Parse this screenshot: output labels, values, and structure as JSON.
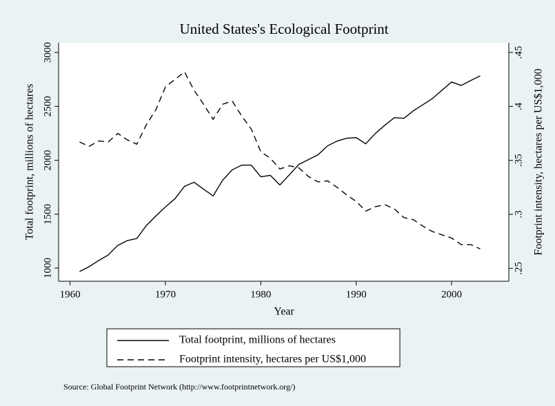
{
  "chart_data": {
    "type": "line",
    "title": "United States's Ecological Footprint",
    "x_label": "Year",
    "y_label": "Total footprint, millions of hectares",
    "y2_label": "Footprint intensity, hectares per US$1,000",
    "source": "Source: Global Footprint Network (http://www.footprintnetwork.org/)",
    "x": [
      1961,
      1962,
      1963,
      1964,
      1965,
      1966,
      1967,
      1968,
      1969,
      1970,
      1971,
      1972,
      1973,
      1974,
      1975,
      1976,
      1977,
      1978,
      1979,
      1980,
      1981,
      1982,
      1983,
      1984,
      1985,
      1986,
      1987,
      1988,
      1989,
      1990,
      1991,
      1992,
      1993,
      1994,
      1995,
      1996,
      1997,
      1998,
      1999,
      2000,
      2001,
      2002,
      2003
    ],
    "series": [
      {
        "name": "Total footprint, millions of hectares",
        "color": "#000000",
        "dash": "solid",
        "values": [
          968,
          1013,
          1070,
          1121,
          1210,
          1255,
          1274,
          1395,
          1484,
          1567,
          1643,
          1758,
          1796,
          1732,
          1669,
          1815,
          1911,
          1955,
          1955,
          1847,
          1860,
          1771,
          1866,
          1962,
          2006,
          2051,
          2134,
          2178,
          2204,
          2210,
          2153,
          2248,
          2325,
          2395,
          2389,
          2459,
          2516,
          2573,
          2650,
          2726,
          2694,
          2739,
          2783
        ]
      },
      {
        "name": "Footprint intensity, hectares per US$1,000",
        "color": "#000000",
        "dash": "dashed",
        "axis": "y2",
        "values": [
          0.367,
          0.363,
          0.368,
          0.367,
          0.375,
          0.369,
          0.365,
          0.383,
          0.397,
          0.418,
          0.425,
          0.432,
          0.415,
          0.402,
          0.388,
          0.402,
          0.405,
          0.391,
          0.379,
          0.358,
          0.352,
          0.342,
          0.345,
          0.343,
          0.335,
          0.33,
          0.331,
          0.325,
          0.318,
          0.312,
          0.303,
          0.307,
          0.309,
          0.305,
          0.297,
          0.295,
          0.289,
          0.284,
          0.281,
          0.278,
          0.272,
          0.272,
          0.268
        ]
      }
    ],
    "xlim": [
      1958.8,
      2006.0
    ],
    "xticks": [
      1960,
      1970,
      1980,
      1990,
      2000
    ],
    "ylim": [
      878,
      3090
    ],
    "yticks": [
      1000,
      1500,
      2000,
      2500,
      3000
    ],
    "y2lim": [
      0.238,
      0.459
    ],
    "y2ticks": [
      {
        "value": 0.25,
        "label": ".25"
      },
      {
        "value": 0.3,
        "label": ".3"
      },
      {
        "value": 0.35,
        "label": ".35"
      },
      {
        "value": 0.4,
        "label": ".4"
      },
      {
        "value": 0.45,
        "label": ".45"
      }
    ],
    "grid": false,
    "legend": "bottom"
  }
}
